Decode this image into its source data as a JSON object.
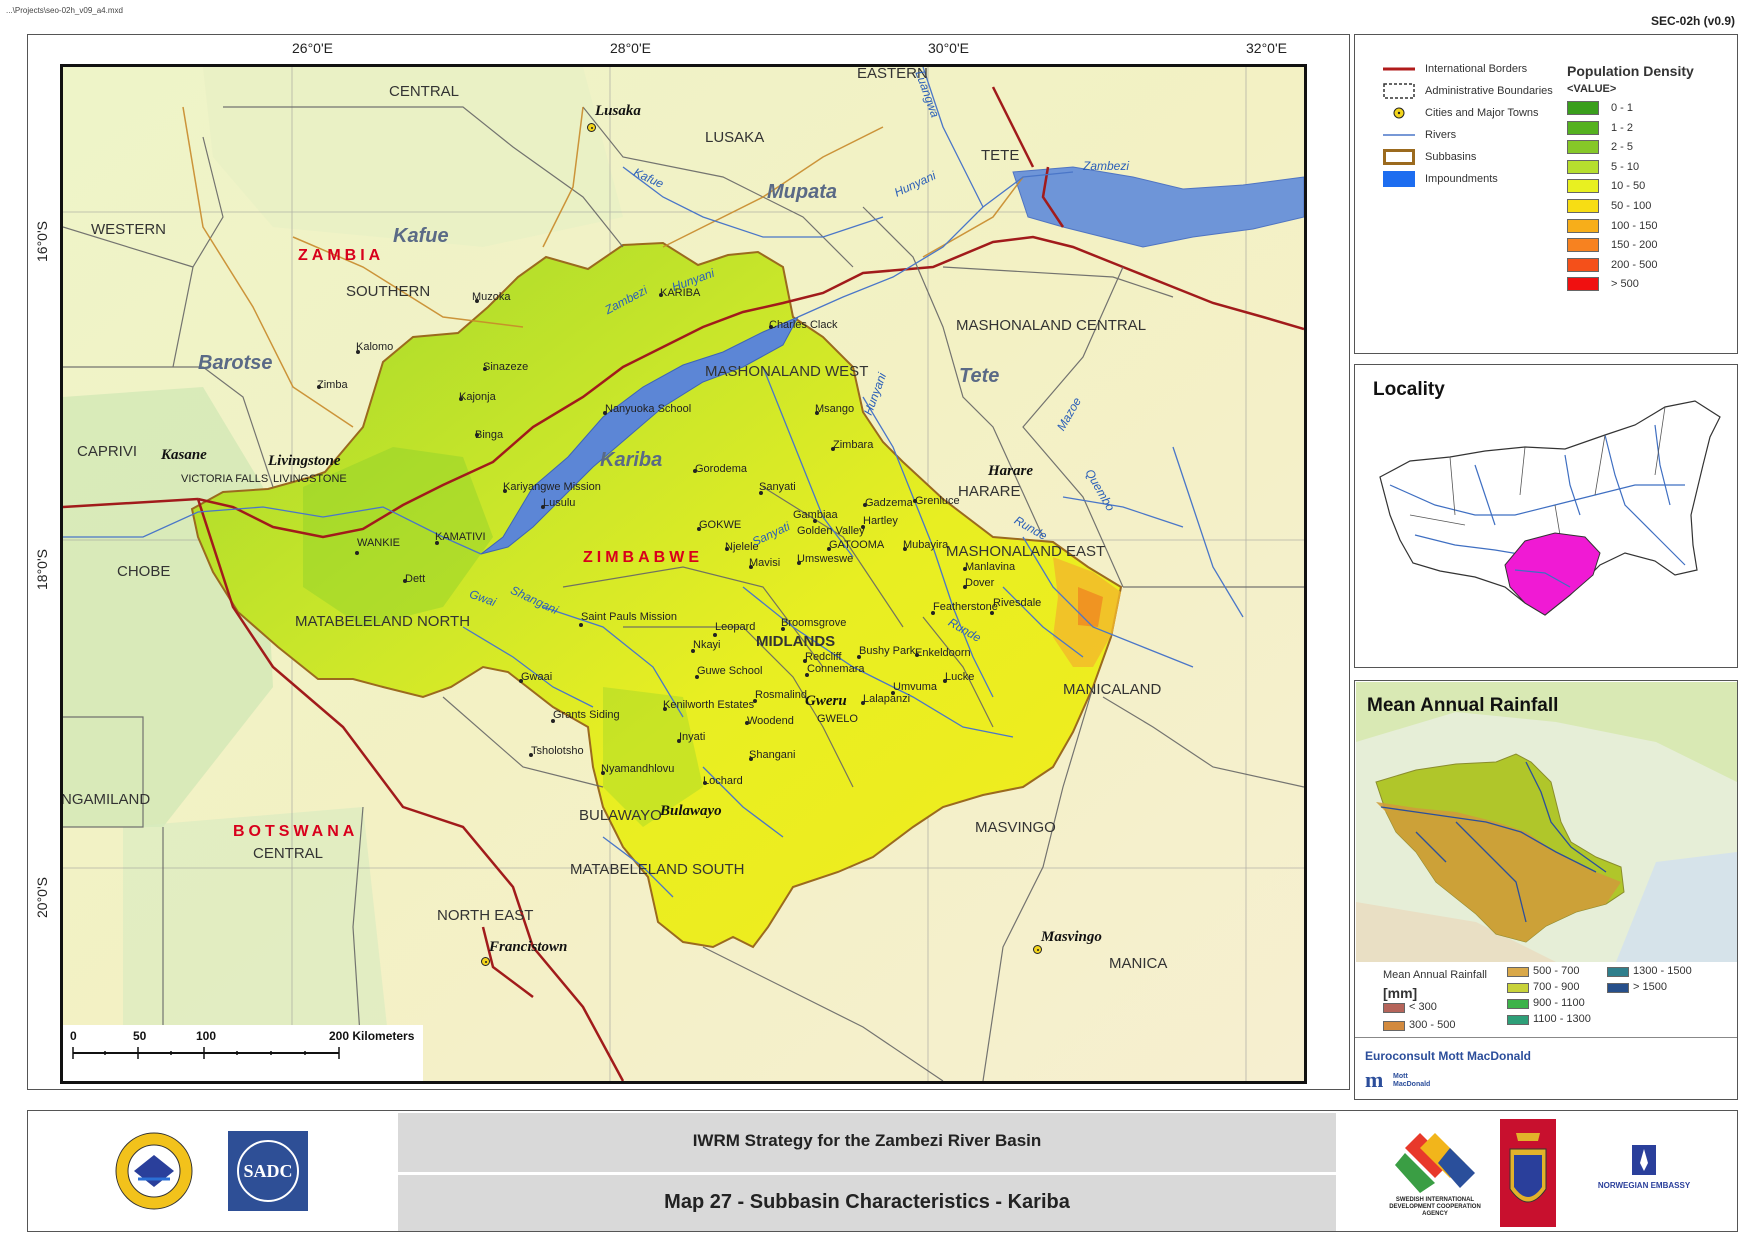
{
  "header": {
    "file_path": "...\\Projects\\seo-02h_v09_a4.mxd",
    "map_code": "SEC-02h (v0.9)"
  },
  "map": {
    "longitudes": [
      "26°0'E",
      "28°0'E",
      "30°0'E",
      "32°0'E"
    ],
    "latitudes": [
      "16°0'S",
      "18°0'S",
      "20°0'S"
    ],
    "countries": {
      "zambia": "ZAMBIA",
      "zimbabwe": "ZIMBABWE",
      "botswana": "BOTSWANA"
    },
    "basins": {
      "kafue": "Kafue",
      "mupata": "Mupata",
      "barotse": "Barotse",
      "tete": "Tete",
      "kariba": "Kariba"
    },
    "regions": {
      "central_n": "CENTRAL",
      "lusaka_prov": "LUSAKA",
      "eastern": "EASTERN",
      "tete_prov": "TETE",
      "western": "WESTERN",
      "southern": "SOUTHERN",
      "mashonaland_central": "MASHONALAND CENTRAL",
      "mashonaland_west": "MASHONALAND WEST",
      "caprivi": "CAPRIVI",
      "harare_prov": "HARARE",
      "mashonaland_east": "MASHONALAND EAST",
      "chobe": "CHOBE",
      "matabeleland_north": "MATABELELAND NORTH",
      "midlands": "MIDLANDS",
      "manicaland": "MANICALAND",
      "ngamiland": "NGAMILAND",
      "masvingo_prov": "MASVINGO",
      "central_s": "CENTRAL",
      "matabeleland_south": "MATABELELAND SOUTH",
      "north_east": "NORTH EAST",
      "manica": "MANICA",
      "bulawayo_prov": "BULAWAYO",
      "victoria_falls": "VICTORIA FALLS",
      "livingstone_prov": "LIVINGSTONE"
    },
    "big_cities": {
      "lusaka": "Lusaka",
      "livingstone": "Livingstone",
      "kasane": "Kasane",
      "harare": "Harare",
      "gweru": "Gweru",
      "bulawayo": "Bulawayo",
      "francistown": "Francistown",
      "masvingo": "Masvingo"
    },
    "towns": {
      "muzoka": "Muzoka",
      "kariba": "KARIBA",
      "charles_clack": "Charles Clack",
      "kalomo": "Kalomo",
      "sinazeze": "Sinazeze",
      "zimba": "Zimba",
      "kajonja": "Kajonja",
      "binga": "Binga",
      "nanyuoka": "Nanyuoka School",
      "msango": "Msango",
      "zimbara": "Zimbara",
      "gorodema": "Gorodema",
      "kariyangwe": "Kariyangwe Mission",
      "lusulu": "Lusulu",
      "sanyati": "Sanyati",
      "gadzema": "Gadzema",
      "chegutu": "Gambiaa",
      "hartley": "Hartley",
      "golden_valley": "Golden Valley",
      "gokwe": "GOKWE",
      "kamativi": "KAMATIVI",
      "wankie": "WANKIE",
      "njelele": "Njelele",
      "gatooma": "GATOOMA",
      "mubayira": "Mubayira",
      "umsweswe": "Umsweswe",
      "mavisi": "Mavisi",
      "manlavina": "Manlavina",
      "dett": "Dett",
      "dover": "Dover",
      "saint_pauls": "Saint Pauls Mission",
      "leopard": "Leopard",
      "broomsgrove": "Broomsgrove",
      "featherstone": "Featherstone",
      "rivesdale": "Rivesdale",
      "nkayi": "Nkayi",
      "bushy_park": "Bushy Park",
      "enkeldoorn": "Enkeldoorn",
      "redcliff": "Redcliff",
      "gwaai": "Gwaai",
      "guwe": "Guwe School",
      "connemara": "Connemara",
      "umvuma": "Umvuma",
      "lucke": "Lucke",
      "rosmalind": "Rosmalind",
      "kenilworth": "Kenilworth Estates",
      "lalapanzi": "Lalapanzi",
      "grants": "Grants Siding",
      "woodend": "Woodend",
      "gwelo": "GWELO",
      "inyati": "Inyati",
      "tsholotsho": "Tsholotsho",
      "shangani_t": "Shangani",
      "nyamandhlovu": "Nyamandhlovu",
      "lochard": "Lochard",
      "grenluce": "Grenluce"
    },
    "rivers": {
      "zambezi_nw": "Zambezi",
      "zambezi_ne": "Zambezi",
      "kafue": "Kafue",
      "luangwa": "Luangwa",
      "hunyani_n": "Hunyani",
      "hunyani_k": "Hunyani",
      "hunyani_c": "Hunyani",
      "mazoe": "Mazoe",
      "runde_n": "Runde",
      "quembo": "Quembo",
      "sanyati": "Sanyati",
      "shangani": "Shangani",
      "gwai": "Gwai",
      "runde_s": "Runde"
    },
    "scale": {
      "ticks": [
        "0",
        "50",
        "100",
        "200 Kilometers"
      ]
    }
  },
  "legend": {
    "items": [
      {
        "label": "International Borders",
        "symbol": "line-red"
      },
      {
        "label": "Administrative Boundaries",
        "symbol": "dashed-box"
      },
      {
        "label": "Cities and Major Towns",
        "symbol": "town-dot"
      },
      {
        "label": "Rivers",
        "symbol": "line-blue"
      },
      {
        "label": "Subbasins",
        "symbol": "brown-box"
      },
      {
        "label": "Impoundments",
        "symbol": "blue-fill"
      }
    ],
    "population_density": {
      "title": "Population Density",
      "subtitle": "<VALUE>",
      "classes": [
        {
          "label": "0 - 1",
          "color": "#3a9e1c"
        },
        {
          "label": "1 - 2",
          "color": "#55b120"
        },
        {
          "label": "2 - 5",
          "color": "#86c828"
        },
        {
          "label": "5 - 10",
          "color": "#b6de2e"
        },
        {
          "label": "10 - 50",
          "color": "#e8f021"
        },
        {
          "label": "50 - 100",
          "color": "#f7dd14"
        },
        {
          "label": "100 - 150",
          "color": "#f7ae1a"
        },
        {
          "label": "150 - 200",
          "color": "#f78220"
        },
        {
          "label": "200 - 500",
          "color": "#f4501a"
        },
        {
          "label": "> 500",
          "color": "#f01010"
        }
      ]
    }
  },
  "locality": {
    "title": "Locality"
  },
  "rainfall": {
    "title": "Mean Annual Rainfall",
    "legend_title": "Mean Annual Rainfall",
    "legend_unit": "[mm]",
    "classes": [
      {
        "label": "< 300",
        "color": "#b5645a"
      },
      {
        "label": "300 - 500",
        "color": "#d28a3e"
      },
      {
        "label": "500 - 700",
        "color": "#d9a849"
      },
      {
        "label": "700 - 900",
        "color": "#c8d23a"
      },
      {
        "label": "900 - 1100",
        "color": "#3db34a"
      },
      {
        "label": "1100 - 1300",
        "color": "#2e9f78"
      },
      {
        "label": "1300 - 1500",
        "color": "#2f7f8c"
      },
      {
        "label": "> 1500",
        "color": "#264f8a"
      }
    ],
    "credit": "Euroconsult Mott MacDonald",
    "credit_logo": "Mott MacDonald"
  },
  "footer": {
    "title": "IWRM Strategy for the Zambezi River Basin",
    "subtitle": "Map 27 - Subbasin Characteristics - Kariba",
    "logo_zra": "ZAMBEZI RIVER AUTHORITY",
    "logo_sadc": "SADC",
    "logo_sida": "SWEDISH INTERNATIONAL DEVELOPMENT COOPERATION AGENCY",
    "logo_norway": "NORWEGIAN EMBASSY"
  }
}
